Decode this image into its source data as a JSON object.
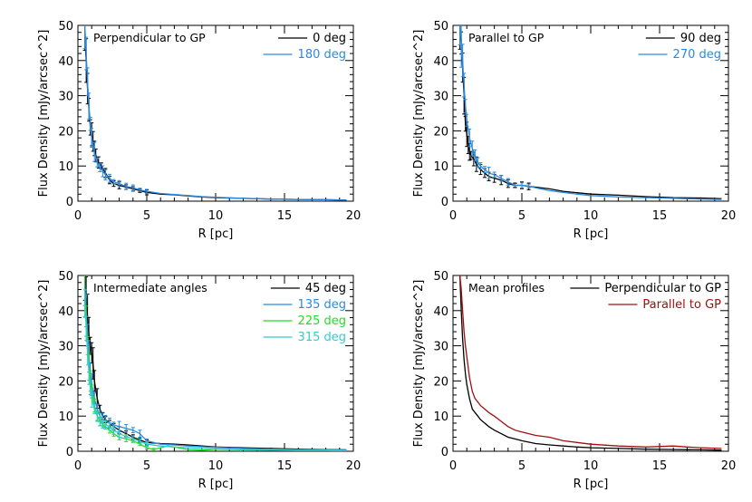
{
  "chart_data": [
    {
      "type": "line",
      "title": "Perpendicular to GP",
      "xlabel": "R [pc]",
      "ylabel": "Flux Density [mJy/arcsec^2]",
      "xlim": [
        0,
        20
      ],
      "ylim": [
        0,
        50
      ],
      "xticks": [
        "0",
        "5",
        "10",
        "15",
        "20"
      ],
      "yticks": [
        "0",
        "10",
        "20",
        "30",
        "40",
        "50"
      ],
      "legend_position": "top-right",
      "series": [
        {
          "name": "0 deg",
          "color": "#000000",
          "errorbars": true,
          "x": [
            0.5,
            0.6,
            0.7,
            0.8,
            0.9,
            1.0,
            1.1,
            1.2,
            1.3,
            1.5,
            1.7,
            2.0,
            2.3,
            2.6,
            3.0,
            3.5,
            4.0,
            4.5,
            5.0,
            6.0,
            7.0,
            8.0,
            9.0,
            10.0,
            12.0,
            14.0,
            16.0,
            18.0,
            19.5
          ],
          "y": [
            47,
            40,
            32,
            26,
            21,
            19,
            17,
            15,
            13,
            11,
            10,
            8,
            6,
            5,
            4.5,
            4,
            3.5,
            3,
            2.5,
            2,
            1.8,
            1.5,
            1.2,
            1,
            0.8,
            0.6,
            0.5,
            0.4,
            0.3
          ]
        },
        {
          "name": "180 deg",
          "color": "#2b8ae0",
          "errorbars": true,
          "x": [
            0.5,
            0.6,
            0.7,
            0.8,
            0.9,
            1.0,
            1.2,
            1.4,
            1.6,
            1.8,
            2.0,
            2.3,
            2.6,
            3.0,
            3.5,
            4.0,
            4.5,
            5.0,
            6.0,
            7.0,
            8.0,
            9.0,
            10.0,
            12.0,
            14.0,
            16.0,
            18.0,
            19.5
          ],
          "y": [
            50,
            42,
            34,
            27,
            22,
            18,
            14,
            11,
            9.5,
            8.5,
            7.5,
            6.5,
            5.5,
            5,
            4.2,
            3.8,
            3.2,
            2.8,
            2.2,
            1.9,
            1.6,
            1.3,
            1.1,
            0.8,
            0.6,
            0.5,
            0.4,
            0.3
          ]
        }
      ]
    },
    {
      "type": "line",
      "title": "Parallel to GP",
      "xlabel": "R [pc]",
      "ylabel": "Flux Density [mJy/arcsec^2]",
      "xlim": [
        0,
        20
      ],
      "ylim": [
        0,
        50
      ],
      "xticks": [
        "0",
        "5",
        "10",
        "15",
        "20"
      ],
      "yticks": [
        "0",
        "10",
        "20",
        "30",
        "40",
        "50"
      ],
      "legend_position": "top-right",
      "series": [
        {
          "name": "90 deg",
          "color": "#000000",
          "errorbars": true,
          "x": [
            0.5,
            0.6,
            0.7,
            0.8,
            0.9,
            1.0,
            1.1,
            1.2,
            1.3,
            1.5,
            1.7,
            2.0,
            2.3,
            2.6,
            3.0,
            3.5,
            4.0,
            4.5,
            5.0,
            5.5,
            6.0,
            7.0,
            8.0,
            9.0,
            10.0,
            12.0,
            14.0,
            16.0,
            18.0,
            19.5
          ],
          "y": [
            50,
            45,
            38,
            30,
            22,
            19,
            16,
            14,
            13,
            12,
            10.5,
            9,
            8,
            7,
            6.5,
            6,
            5,
            4.5,
            4.5,
            4.2,
            4,
            3.5,
            2.8,
            2.4,
            2,
            1.7,
            1.3,
            1,
            0.9,
            0.7
          ]
        },
        {
          "name": "270 deg",
          "color": "#2b8ae0",
          "errorbars": true,
          "x": [
            0.5,
            0.6,
            0.7,
            0.8,
            0.9,
            1.0,
            1.2,
            1.4,
            1.6,
            1.8,
            2.0,
            2.3,
            2.6,
            3.0,
            3.5,
            4.0,
            4.5,
            5.0,
            5.5,
            6.0,
            7.0,
            8.0,
            9.0,
            10.0,
            12.0,
            14.0,
            16.0,
            18.0,
            19.5
          ],
          "y": [
            50,
            46,
            40,
            33,
            27,
            23,
            18,
            15,
            13,
            11,
            10,
            9,
            8,
            7.5,
            6.5,
            5.5,
            4.5,
            4.5,
            4.3,
            3.8,
            3,
            2.5,
            2,
            1.6,
            1.2,
            1,
            0.8,
            0.6,
            0.5
          ]
        }
      ]
    },
    {
      "type": "line",
      "title": "Intermediate angles",
      "xlabel": "R [pc]",
      "ylabel": "Flux Density [mJy/arcsec^2]",
      "xlim": [
        0,
        20
      ],
      "ylim": [
        0,
        50
      ],
      "xticks": [
        "0",
        "5",
        "10",
        "15",
        "20"
      ],
      "yticks": [
        "0",
        "10",
        "20",
        "30",
        "40",
        "50"
      ],
      "legend_position": "top-right",
      "series": [
        {
          "name": "45 deg",
          "color": "#000000",
          "errorbars": true,
          "x": [
            0.5,
            0.6,
            0.7,
            0.8,
            0.9,
            1.0,
            1.1,
            1.2,
            1.4,
            1.6,
            1.8,
            2.0,
            2.3,
            2.6,
            3.0,
            3.5,
            4.0,
            4.5,
            5.0,
            6.0,
            7.0,
            8.0,
            9.0,
            10.0,
            12.0,
            14.0,
            16.0,
            18.0,
            19.5
          ],
          "y": [
            50,
            44,
            38,
            33,
            30,
            28,
            25,
            20,
            15,
            12,
            10,
            9,
            8,
            7,
            6,
            5,
            4,
            3.2,
            2.5,
            2.2,
            2,
            1.8,
            1.5,
            1.2,
            1,
            0.8,
            0.6,
            0.5,
            0.4
          ]
        },
        {
          "name": "135 deg",
          "color": "#2b8ae0",
          "errorbars": true,
          "x": [
            0.5,
            0.6,
            0.7,
            0.8,
            0.9,
            1.0,
            1.2,
            1.4,
            1.6,
            1.8,
            2.0,
            2.3,
            2.6,
            3.0,
            3.5,
            4.0,
            4.5,
            5.0,
            6.0,
            7.0,
            8.0,
            9.0,
            10.0,
            12.0,
            14.0,
            16.0,
            18.0,
            19.5
          ],
          "y": [
            48,
            40,
            33,
            27,
            22,
            19,
            15,
            12,
            10,
            9,
            8.5,
            8,
            7.5,
            7,
            6.5,
            6,
            5,
            3,
            2,
            1.8,
            1.5,
            1.3,
            1.1,
            0.8,
            0.6,
            0.5,
            0.4,
            0.3
          ]
        },
        {
          "name": "225 deg",
          "color": "#22dd22",
          "errorbars": true,
          "x": [
            0.5,
            0.6,
            0.7,
            0.8,
            0.9,
            1.0,
            1.2,
            1.4,
            1.6,
            1.8,
            2.0,
            2.3,
            2.6,
            3.0,
            3.5,
            4.0,
            4.5,
            5.0,
            5.5,
            6.0,
            6.5,
            7.0,
            8.0,
            9.0,
            10.0,
            12.0,
            14.0,
            16.0,
            18.0,
            19.5
          ],
          "y": [
            45,
            37,
            30,
            24,
            20,
            17,
            13,
            10,
            8.5,
            7.5,
            7,
            6,
            5,
            4,
            3.5,
            3,
            2,
            1,
            0.5,
            1,
            1.5,
            1.2,
            0.5,
            0.3,
            0.6,
            0.4,
            0.3,
            0.2,
            0.2,
            0.1
          ]
        },
        {
          "name": "315 deg",
          "color": "#33cccc",
          "errorbars": true,
          "x": [
            0.5,
            0.6,
            0.7,
            0.8,
            0.9,
            1.0,
            1.2,
            1.4,
            1.6,
            1.8,
            2.0,
            2.3,
            2.6,
            3.0,
            3.5,
            4.0,
            4.5,
            5.0,
            6.0,
            7.0,
            8.0,
            9.0,
            10.0,
            12.0,
            14.0,
            16.0,
            18.0,
            19.5
          ],
          "y": [
            42,
            35,
            28,
            22,
            18,
            15,
            12,
            10,
            9,
            8,
            7.5,
            7,
            6,
            5,
            4.2,
            3.5,
            2.8,
            2,
            1.5,
            1.2,
            1,
            0.8,
            0.7,
            0.5,
            0.4,
            0.3,
            0.3,
            0.2
          ]
        }
      ]
    },
    {
      "type": "line",
      "title": "Mean profiles",
      "xlabel": "R [pc]",
      "ylabel": "Flux Density [mJy/arcsec^2]",
      "xlim": [
        0,
        20
      ],
      "ylim": [
        0,
        50
      ],
      "xticks": [
        "0",
        "5",
        "10",
        "15",
        "20"
      ],
      "yticks": [
        "0",
        "10",
        "20",
        "30",
        "40",
        "50"
      ],
      "legend_position": "top-right",
      "series": [
        {
          "name": "Perpendicular to GP",
          "color": "#000000",
          "errorbars": false,
          "x": [
            0.5,
            0.6,
            0.7,
            0.8,
            0.9,
            1.0,
            1.2,
            1.4,
            1.6,
            1.8,
            2.0,
            2.3,
            2.6,
            3.0,
            3.5,
            4.0,
            4.5,
            5.0,
            6.0,
            7.0,
            8.0,
            9.0,
            10.0,
            12.0,
            14.0,
            16.0,
            18.0,
            19.5
          ],
          "y": [
            50,
            40,
            32,
            26,
            22,
            19,
            15,
            12,
            11,
            10,
            9,
            8,
            7,
            6,
            5,
            4,
            3.5,
            3,
            2.2,
            1.8,
            1.5,
            1.2,
            1,
            0.8,
            0.6,
            0.5,
            0.4,
            0.3
          ]
        },
        {
          "name": "Parallel to GP",
          "color": "#a01010",
          "errorbars": false,
          "x": [
            0.5,
            0.6,
            0.7,
            0.8,
            0.9,
            1.0,
            1.2,
            1.4,
            1.6,
            1.8,
            2.0,
            2.3,
            2.6,
            3.0,
            3.5,
            4.0,
            4.5,
            5.0,
            5.5,
            6.0,
            7.0,
            8.0,
            9.0,
            10.0,
            12.0,
            14.0,
            16.0,
            17.0,
            18.0,
            19.5
          ],
          "y": [
            50,
            46,
            40,
            34,
            30,
            27,
            21,
            17,
            15,
            14,
            13,
            12,
            11,
            10,
            8.5,
            7,
            6,
            5.5,
            5,
            4.5,
            4,
            3,
            2.5,
            2,
            1.5,
            1.2,
            1.5,
            1.2,
            1,
            0.8
          ]
        }
      ]
    }
  ]
}
